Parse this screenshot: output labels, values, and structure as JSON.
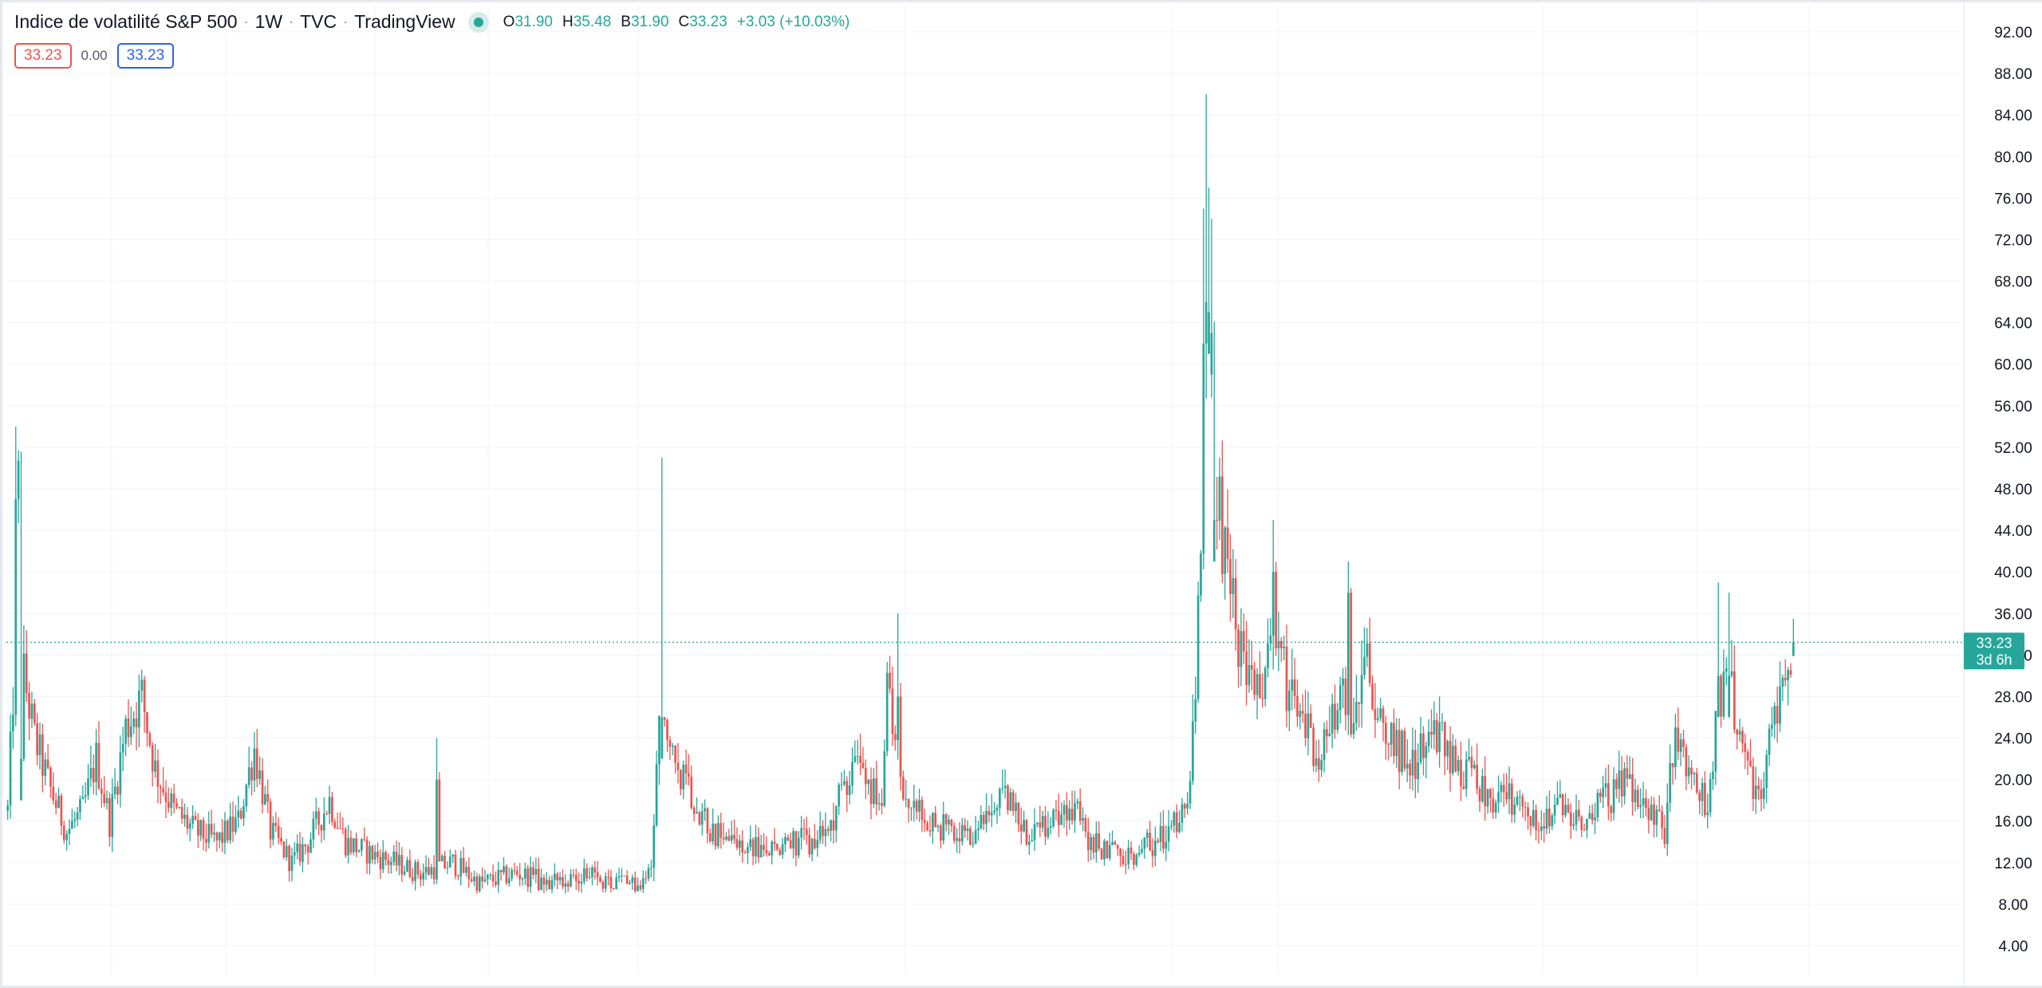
{
  "header": {
    "title": "Indice de volatilité S&P 500",
    "interval": "1W",
    "source": "TVC",
    "provider": "TradingView",
    "status_color": "#26a69a",
    "ohlc": {
      "o_label": "O",
      "o_value": "31.90",
      "h_label": "H",
      "h_value": "35.48",
      "b_label": "B",
      "b_value": "31.90",
      "c_label": "C",
      "c_value": "33.23",
      "change": "+3.03 (+10.03%)"
    },
    "badges": {
      "left": "33.23",
      "middle": "0.00",
      "right": "33.23"
    }
  },
  "price_label": {
    "price": "33.23",
    "countdown": "3d 6h"
  },
  "colors": {
    "up": "#26a69a",
    "down": "#ef5350",
    "grid": "#f0f3fa",
    "price_line": "#26a69a"
  },
  "chart_data": {
    "type": "candlestick",
    "title": "Indice de volatilité S&P 500",
    "y_axis": {
      "position": "right",
      "ylim": [
        2,
        94
      ],
      "ticks": [
        "4.00",
        "8.00",
        "12.00",
        "16.00",
        "20.00",
        "24.00",
        "28.00",
        "32.00",
        "36.00",
        "40.00",
        "44.00",
        "48.00",
        "52.00",
        "56.00",
        "60.00",
        "64.00",
        "68.00",
        "72.00",
        "76.00",
        "80.00",
        "84.00",
        "88.00",
        "92.00"
      ]
    },
    "grid": true,
    "last_price": 33.23,
    "control_points": [
      [
        0,
        17
      ],
      [
        2,
        28
      ],
      [
        4,
        48
      ],
      [
        6,
        30
      ],
      [
        10,
        24
      ],
      [
        16,
        19
      ],
      [
        22,
        15
      ],
      [
        28,
        17
      ],
      [
        33,
        22
      ],
      [
        38,
        16
      ],
      [
        44,
        25
      ],
      [
        50,
        28
      ],
      [
        55,
        21
      ],
      [
        62,
        17
      ],
      [
        70,
        15
      ],
      [
        78,
        14
      ],
      [
        86,
        16
      ],
      [
        92,
        23
      ],
      [
        98,
        15
      ],
      [
        106,
        12
      ],
      [
        112,
        14
      ],
      [
        120,
        18
      ],
      [
        126,
        14
      ],
      [
        134,
        13
      ],
      [
        144,
        12
      ],
      [
        154,
        11
      ],
      [
        166,
        12
      ],
      [
        176,
        10
      ],
      [
        190,
        11
      ],
      [
        202,
        10
      ],
      [
        214,
        11
      ],
      [
        226,
        10
      ],
      [
        236,
        10
      ],
      [
        240,
        12
      ],
      [
        243,
        26
      ],
      [
        247,
        22
      ],
      [
        255,
        19
      ],
      [
        262,
        15
      ],
      [
        272,
        14
      ],
      [
        282,
        13
      ],
      [
        292,
        14
      ],
      [
        302,
        14
      ],
      [
        308,
        16
      ],
      [
        312,
        20
      ],
      [
        318,
        22
      ],
      [
        326,
        17
      ],
      [
        328,
        28
      ],
      [
        334,
        19
      ],
      [
        342,
        16
      ],
      [
        352,
        15
      ],
      [
        360,
        14
      ],
      [
        366,
        17
      ],
      [
        372,
        18
      ],
      [
        380,
        15
      ],
      [
        388,
        16
      ],
      [
        396,
        18
      ],
      [
        404,
        14
      ],
      [
        412,
        13
      ],
      [
        420,
        13
      ],
      [
        428,
        14
      ],
      [
        434,
        15
      ],
      [
        440,
        18
      ],
      [
        442,
        25
      ],
      [
        446,
        44
      ],
      [
        448,
        62
      ],
      [
        451,
        48
      ],
      [
        456,
        38
      ],
      [
        462,
        30
      ],
      [
        468,
        27
      ],
      [
        472,
        34
      ],
      [
        478,
        28
      ],
      [
        484,
        25
      ],
      [
        490,
        22
      ],
      [
        496,
        28
      ],
      [
        502,
        26
      ],
      [
        506,
        33
      ],
      [
        512,
        25
      ],
      [
        518,
        23
      ],
      [
        526,
        22
      ],
      [
        532,
        25
      ],
      [
        540,
        21
      ],
      [
        548,
        20
      ],
      [
        556,
        18
      ],
      [
        562,
        18
      ],
      [
        568,
        16
      ],
      [
        574,
        17
      ],
      [
        580,
        17
      ],
      [
        588,
        16
      ],
      [
        596,
        18
      ],
      [
        604,
        20
      ],
      [
        612,
        17
      ],
      [
        618,
        15
      ],
      [
        622,
        26
      ],
      [
        626,
        22
      ],
      [
        630,
        19
      ],
      [
        634,
        17
      ],
      [
        638,
        27
      ],
      [
        642,
        30
      ],
      [
        646,
        24
      ],
      [
        650,
        20
      ],
      [
        654,
        18
      ],
      [
        658,
        25
      ],
      [
        662,
        31
      ],
      [
        666,
        33
      ]
    ],
    "candle_count": 667
  }
}
